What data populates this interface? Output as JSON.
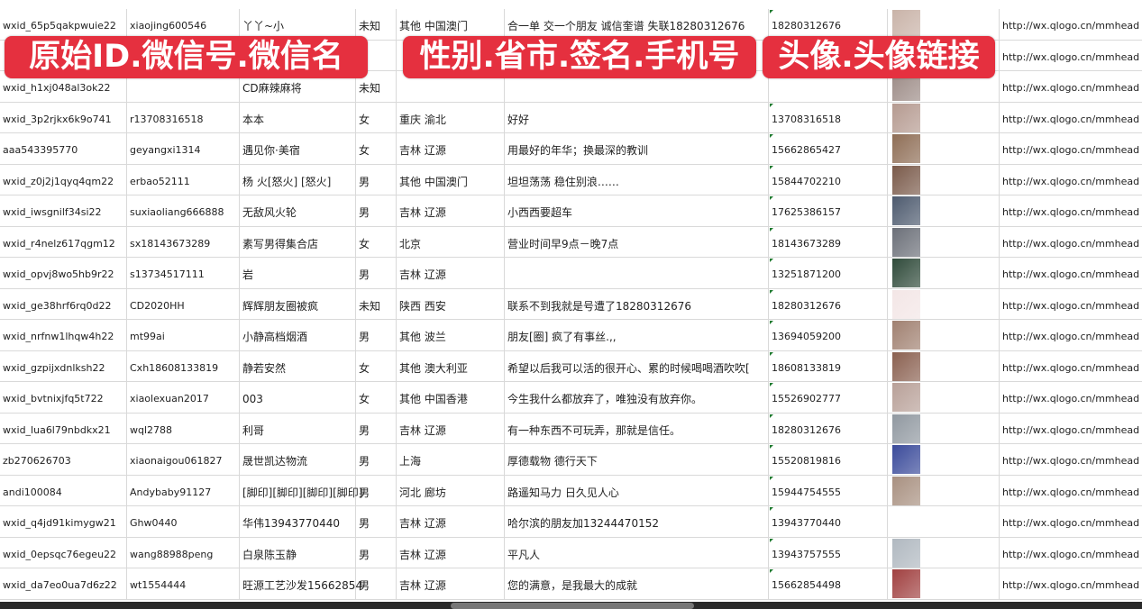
{
  "banners": [
    "原始ID.微信号.微信名",
    "性别.省市.签名.手机号",
    "头像.头像链接"
  ],
  "rows": [
    {
      "id": "wxid_65p5qakpwuie22",
      "wx": "xiaojing600546",
      "name": "丫丫~小",
      "gender": "未知",
      "region": "其他 中国澳门",
      "sig": "合一单 交一个朋友 诚信奎谱 失联18280312676",
      "phone": "18280312676",
      "avatar": "#c9b3a8",
      "link": "http://wx.qlogo.cn/mmhead"
    },
    {
      "id": "",
      "wx": "",
      "name": "",
      "gender": "",
      "region": "",
      "sig": "",
      "phone": "",
      "avatar": "#6a78a8",
      "link": "http://wx.qlogo.cn/mmhead"
    },
    {
      "id": "wxid_h1xj048al3ok22",
      "wx": "",
      "name": "CD麻辣麻将",
      "gender": "未知",
      "region": "",
      "sig": "",
      "phone": "",
      "avatar": "#9c8b86",
      "link": "http://wx.qlogo.cn/mmhead"
    },
    {
      "id": "wxid_3p2rjkx6k9o741",
      "wx": "r13708316518",
      "name": "本本",
      "gender": "女",
      "region": "重庆 渝北",
      "sig": "好好",
      "phone": "13708316518",
      "avatar": "#b59a90",
      "link": "http://wx.qlogo.cn/mmhead"
    },
    {
      "id": "aaa543395770",
      "wx": "geyangxi1314",
      "name": "遇见你·美宿",
      "gender": "女",
      "region": "吉林 辽源",
      "sig": "用最好的年华；换最深的教训",
      "phone": "15662865427",
      "avatar": "#8e6d55",
      "link": "http://wx.qlogo.cn/mmhead"
    },
    {
      "id": "wxid_z0j2j1qyq4qm22",
      "wx": "erbao52111",
      "name": "杨 火[怒火] [怒火]",
      "gender": "男",
      "region": "其他 中国澳门",
      "sig": "坦坦荡荡 稳住别浪……",
      "phone": "15844702210",
      "avatar": "#7a5a4a",
      "link": "http://wx.qlogo.cn/mmhead"
    },
    {
      "id": "wxid_iwsgnilf34si22",
      "wx": "suxiaoliang666888",
      "name": "无敌风火轮",
      "gender": "男",
      "region": "吉林 辽源",
      "sig": "小西西要超车",
      "phone": "17625386157",
      "avatar": "#4d5a6e",
      "link": "http://wx.qlogo.cn/mmhead"
    },
    {
      "id": "wxid_r4nelz617qgm12",
      "wx": "sx18143673289",
      "name": "素写男得集合店",
      "gender": "女",
      "region": "北京",
      "sig": "营业时间早9点－晚7点",
      "phone": "18143673289",
      "avatar": "#6b6f78",
      "link": "http://wx.qlogo.cn/mmhead"
    },
    {
      "id": "wxid_opvj8wo5hb9r22",
      "wx": "s13734517111",
      "name": "岩",
      "gender": "男",
      "region": "吉林 辽源",
      "sig": "",
      "phone": "13251871200",
      "avatar": "#2f4a3a",
      "link": "http://wx.qlogo.cn/mmhead"
    },
    {
      "id": "wxid_ge38hrf6rq0d22",
      "wx": "CD2020HH",
      "name": "辉辉朋友圈被疯",
      "gender": "未知",
      "region": "陕西 西安",
      "sig": "联系不到我就是号遭了18280312676",
      "phone": "18280312676",
      "avatar": "#f3e6e6",
      "link": "http://wx.qlogo.cn/mmhead"
    },
    {
      "id": "wxid_nrfnw1lhqw4h22",
      "wx": "mt99ai",
      "name": "小静高档烟酒",
      "gender": "男",
      "region": "其他 波兰",
      "sig": "朋友[圈] 疯了有事丝.,,",
      "phone": "13694059200",
      "avatar": "#a08070",
      "link": "http://wx.qlogo.cn/mmhead"
    },
    {
      "id": "wxid_gzpijxdnlksh22",
      "wx": "Cxh18608133819",
      "name": "静若安然",
      "gender": "女",
      "region": "其他 澳大利亚",
      "sig": "希望以后我可以活的很开心、累的时候喝喝酒吹吹[",
      "phone": "18608133819",
      "avatar": "#8a6050",
      "link": "http://wx.qlogo.cn/mmhead"
    },
    {
      "id": "wxid_bvtnixjfq5t722",
      "wx": "xiaolexuan2017",
      "name": "003",
      "gender": "女",
      "region": "其他 中国香港",
      "sig": "今生我什么都放弃了，唯独没有放弃你。",
      "phone": "15526902777",
      "avatar": "#b8a098",
      "link": "http://wx.qlogo.cn/mmhead"
    },
    {
      "id": "wxid_lua6l79nbdkx21",
      "wx": "wql2788",
      "name": "利哥",
      "gender": "男",
      "region": "吉林 辽源",
      "sig": "有一种东西不可玩弄，那就是信任。",
      "phone": "18280312676",
      "avatar": "#9098a0",
      "link": "http://wx.qlogo.cn/mmhead"
    },
    {
      "id": "zb270626703",
      "wx": "xiaonaigou061827",
      "name": "晟世凯达物流",
      "gender": "男",
      "region": "上海",
      "sig": "厚德载物 德行天下",
      "phone": "15520819816",
      "avatar": "#3a4a9a",
      "link": "http://wx.qlogo.cn/mmhead"
    },
    {
      "id": "andi100084",
      "wx": "Andybaby91127",
      "name": "[脚印][脚印][脚印][脚印]",
      "gender": "男",
      "region": "河北 廊坊",
      "sig": "路遥知马力 日久见人心",
      "phone": "15944754555",
      "avatar": "#a89080",
      "link": "http://wx.qlogo.cn/mmhead"
    },
    {
      "id": "wxid_q4jd91kimygw21",
      "wx": "Ghw0440",
      "name": "华伟13943770440",
      "gender": "男",
      "region": "吉林 辽源",
      "sig": "哈尔滨的朋友加13244470152",
      "phone": "13943770440",
      "avatar": "#ffffff",
      "link": "http://wx.qlogo.cn/mmhead"
    },
    {
      "id": "wxid_0epsqc76egeu22",
      "wx": "wang88988peng",
      "name": "白泉陈玉静",
      "gender": "男",
      "region": "吉林 辽源",
      "sig": "平凡人",
      "phone": "13943757555",
      "avatar": "#b0b8c0",
      "link": "http://wx.qlogo.cn/mmhead"
    },
    {
      "id": "wxid_da7eo0ua7d6z22",
      "wx": "wt1554444",
      "name": "旺源工艺沙发15662854",
      "gender": "男",
      "region": "吉林 辽源",
      "sig": "您的满意，是我最大的成就",
      "phone": "15662854498",
      "avatar": "#a04040",
      "link": "http://wx.qlogo.cn/mmhead"
    }
  ]
}
